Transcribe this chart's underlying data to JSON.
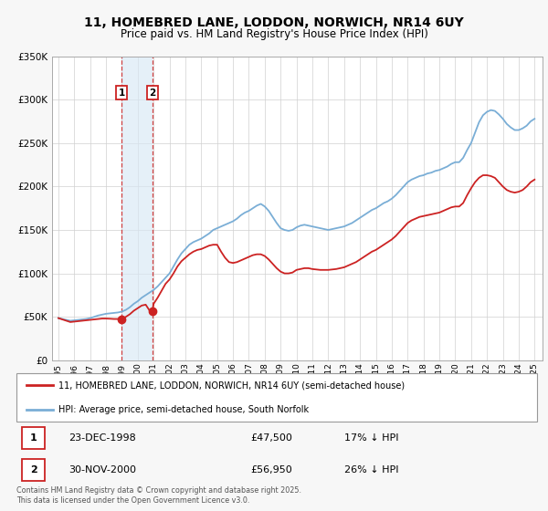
{
  "title": "11, HOMEBRED LANE, LODDON, NORWICH, NR14 6UY",
  "subtitle": "Price paid vs. HM Land Registry's House Price Index (HPI)",
  "title_fontsize": 10,
  "subtitle_fontsize": 8.5,
  "background_color": "#f7f7f7",
  "plot_bg_color": "#ffffff",
  "grid_color": "#d0d0d0",
  "hpi_color": "#7aaed6",
  "price_color": "#cc2222",
  "sale1_date": 1998.97,
  "sale1_price": 47500,
  "sale2_date": 2000.92,
  "sale2_price": 56950,
  "sale1_label": "1",
  "sale2_label": "2",
  "ylim": [
    0,
    350000
  ],
  "xlim": [
    1994.6,
    2025.5
  ],
  "legend_line1": "11, HOMEBRED LANE, LODDON, NORWICH, NR14 6UY (semi-detached house)",
  "legend_line2": "HPI: Average price, semi-detached house, South Norfolk",
  "table_row1": [
    "1",
    "23-DEC-1998",
    "£47,500",
    "17% ↓ HPI"
  ],
  "table_row2": [
    "2",
    "30-NOV-2000",
    "£56,950",
    "26% ↓ HPI"
  ],
  "footnote": "Contains HM Land Registry data © Crown copyright and database right 2025.\nThis data is licensed under the Open Government Licence v3.0.",
  "hpi_data": [
    [
      1995.0,
      48500
    ],
    [
      1995.25,
      47500
    ],
    [
      1995.5,
      46500
    ],
    [
      1995.75,
      45500
    ],
    [
      1996.0,
      46000
    ],
    [
      1996.25,
      46500
    ],
    [
      1996.5,
      47000
    ],
    [
      1996.75,
      47500
    ],
    [
      1997.0,
      48500
    ],
    [
      1997.25,
      50000
    ],
    [
      1997.5,
      51500
    ],
    [
      1997.75,
      52500
    ],
    [
      1998.0,
      53500
    ],
    [
      1998.25,
      54000
    ],
    [
      1998.5,
      54500
    ],
    [
      1998.75,
      55000
    ],
    [
      1999.0,
      56000
    ],
    [
      1999.25,
      58000
    ],
    [
      1999.5,
      61000
    ],
    [
      1999.75,
      65000
    ],
    [
      2000.0,
      68000
    ],
    [
      2000.25,
      72000
    ],
    [
      2000.5,
      75000
    ],
    [
      2000.75,
      78000
    ],
    [
      2001.0,
      81000
    ],
    [
      2001.25,
      85000
    ],
    [
      2001.5,
      90000
    ],
    [
      2001.75,
      95000
    ],
    [
      2002.0,
      100000
    ],
    [
      2002.25,
      108000
    ],
    [
      2002.5,
      116000
    ],
    [
      2002.75,
      123000
    ],
    [
      2003.0,
      128000
    ],
    [
      2003.25,
      133000
    ],
    [
      2003.5,
      136000
    ],
    [
      2003.75,
      138000
    ],
    [
      2004.0,
      140000
    ],
    [
      2004.25,
      143000
    ],
    [
      2004.5,
      146000
    ],
    [
      2004.75,
      150000
    ],
    [
      2005.0,
      152000
    ],
    [
      2005.25,
      154000
    ],
    [
      2005.5,
      156000
    ],
    [
      2005.75,
      158000
    ],
    [
      2006.0,
      160000
    ],
    [
      2006.25,
      163000
    ],
    [
      2006.5,
      167000
    ],
    [
      2006.75,
      170000
    ],
    [
      2007.0,
      172000
    ],
    [
      2007.25,
      175000
    ],
    [
      2007.5,
      178000
    ],
    [
      2007.75,
      180000
    ],
    [
      2008.0,
      177000
    ],
    [
      2008.25,
      172000
    ],
    [
      2008.5,
      165000
    ],
    [
      2008.75,
      158000
    ],
    [
      2009.0,
      152000
    ],
    [
      2009.25,
      150000
    ],
    [
      2009.5,
      149000
    ],
    [
      2009.75,
      150000
    ],
    [
      2010.0,
      153000
    ],
    [
      2010.25,
      155000
    ],
    [
      2010.5,
      156000
    ],
    [
      2010.75,
      155000
    ],
    [
      2011.0,
      154000
    ],
    [
      2011.25,
      153000
    ],
    [
      2011.5,
      152000
    ],
    [
      2011.75,
      151000
    ],
    [
      2012.0,
      150000
    ],
    [
      2012.25,
      151000
    ],
    [
      2012.5,
      152000
    ],
    [
      2012.75,
      153000
    ],
    [
      2013.0,
      154000
    ],
    [
      2013.25,
      156000
    ],
    [
      2013.5,
      158000
    ],
    [
      2013.75,
      161000
    ],
    [
      2014.0,
      164000
    ],
    [
      2014.25,
      167000
    ],
    [
      2014.5,
      170000
    ],
    [
      2014.75,
      173000
    ],
    [
      2015.0,
      175000
    ],
    [
      2015.25,
      178000
    ],
    [
      2015.5,
      181000
    ],
    [
      2015.75,
      183000
    ],
    [
      2016.0,
      186000
    ],
    [
      2016.25,
      190000
    ],
    [
      2016.5,
      195000
    ],
    [
      2016.75,
      200000
    ],
    [
      2017.0,
      205000
    ],
    [
      2017.25,
      208000
    ],
    [
      2017.5,
      210000
    ],
    [
      2017.75,
      212000
    ],
    [
      2018.0,
      213000
    ],
    [
      2018.25,
      215000
    ],
    [
      2018.5,
      216000
    ],
    [
      2018.75,
      218000
    ],
    [
      2019.0,
      219000
    ],
    [
      2019.25,
      221000
    ],
    [
      2019.5,
      223000
    ],
    [
      2019.75,
      226000
    ],
    [
      2020.0,
      228000
    ],
    [
      2020.25,
      228000
    ],
    [
      2020.5,
      233000
    ],
    [
      2020.75,
      242000
    ],
    [
      2021.0,
      250000
    ],
    [
      2021.25,
      262000
    ],
    [
      2021.5,
      274000
    ],
    [
      2021.75,
      282000
    ],
    [
      2022.0,
      286000
    ],
    [
      2022.25,
      288000
    ],
    [
      2022.5,
      287000
    ],
    [
      2022.75,
      283000
    ],
    [
      2023.0,
      278000
    ],
    [
      2023.25,
      272000
    ],
    [
      2023.5,
      268000
    ],
    [
      2023.75,
      265000
    ],
    [
      2024.0,
      265000
    ],
    [
      2024.25,
      267000
    ],
    [
      2024.5,
      270000
    ],
    [
      2024.75,
      275000
    ],
    [
      2025.0,
      278000
    ]
  ],
  "price_data": [
    [
      1995.0,
      48500
    ],
    [
      1995.25,
      47000
    ],
    [
      1995.5,
      45500
    ],
    [
      1995.75,
      44000
    ],
    [
      1996.0,
      44500
    ],
    [
      1996.25,
      45000
    ],
    [
      1996.5,
      45500
    ],
    [
      1996.75,
      46000
    ],
    [
      1997.0,
      46500
    ],
    [
      1997.25,
      47000
    ],
    [
      1997.5,
      47500
    ],
    [
      1997.75,
      48000
    ],
    [
      1998.0,
      48000
    ],
    [
      1998.25,
      47800
    ],
    [
      1998.5,
      47500
    ],
    [
      1998.75,
      47500
    ],
    [
      1998.97,
      47500
    ],
    [
      1999.25,
      50000
    ],
    [
      1999.5,
      53000
    ],
    [
      1999.75,
      57000
    ],
    [
      2000.0,
      60000
    ],
    [
      2000.25,
      63000
    ],
    [
      2000.5,
      64000
    ],
    [
      2000.75,
      57000
    ],
    [
      2000.92,
      56950
    ],
    [
      2001.0,
      65000
    ],
    [
      2001.25,
      72000
    ],
    [
      2001.5,
      80000
    ],
    [
      2001.75,
      88000
    ],
    [
      2002.0,
      93000
    ],
    [
      2002.25,
      100000
    ],
    [
      2002.5,
      108000
    ],
    [
      2002.75,
      114000
    ],
    [
      2003.0,
      118000
    ],
    [
      2003.25,
      122000
    ],
    [
      2003.5,
      125000
    ],
    [
      2003.75,
      127000
    ],
    [
      2004.0,
      128000
    ],
    [
      2004.25,
      130000
    ],
    [
      2004.5,
      132000
    ],
    [
      2004.75,
      133000
    ],
    [
      2005.0,
      133000
    ],
    [
      2005.25,
      125000
    ],
    [
      2005.5,
      118000
    ],
    [
      2005.75,
      113000
    ],
    [
      2006.0,
      112000
    ],
    [
      2006.25,
      113000
    ],
    [
      2006.5,
      115000
    ],
    [
      2006.75,
      117000
    ],
    [
      2007.0,
      119000
    ],
    [
      2007.25,
      121000
    ],
    [
      2007.5,
      122000
    ],
    [
      2007.75,
      122000
    ],
    [
      2008.0,
      120000
    ],
    [
      2008.25,
      116000
    ],
    [
      2008.5,
      111000
    ],
    [
      2008.75,
      106000
    ],
    [
      2009.0,
      102000
    ],
    [
      2009.25,
      100000
    ],
    [
      2009.5,
      100000
    ],
    [
      2009.75,
      101000
    ],
    [
      2010.0,
      104000
    ],
    [
      2010.25,
      105000
    ],
    [
      2010.5,
      106000
    ],
    [
      2010.75,
      106000
    ],
    [
      2011.0,
      105000
    ],
    [
      2011.25,
      104500
    ],
    [
      2011.5,
      104000
    ],
    [
      2011.75,
      104000
    ],
    [
      2012.0,
      104000
    ],
    [
      2012.25,
      104500
    ],
    [
      2012.5,
      105000
    ],
    [
      2012.75,
      106000
    ],
    [
      2013.0,
      107000
    ],
    [
      2013.25,
      109000
    ],
    [
      2013.5,
      111000
    ],
    [
      2013.75,
      113000
    ],
    [
      2014.0,
      116000
    ],
    [
      2014.25,
      119000
    ],
    [
      2014.5,
      122000
    ],
    [
      2014.75,
      125000
    ],
    [
      2015.0,
      127000
    ],
    [
      2015.25,
      130000
    ],
    [
      2015.5,
      133000
    ],
    [
      2015.75,
      136000
    ],
    [
      2016.0,
      139000
    ],
    [
      2016.25,
      143000
    ],
    [
      2016.5,
      148000
    ],
    [
      2016.75,
      153000
    ],
    [
      2017.0,
      158000
    ],
    [
      2017.25,
      161000
    ],
    [
      2017.5,
      163000
    ],
    [
      2017.75,
      165000
    ],
    [
      2018.0,
      166000
    ],
    [
      2018.25,
      167000
    ],
    [
      2018.5,
      168000
    ],
    [
      2018.75,
      169000
    ],
    [
      2019.0,
      170000
    ],
    [
      2019.25,
      172000
    ],
    [
      2019.5,
      174000
    ],
    [
      2019.75,
      176000
    ],
    [
      2020.0,
      177000
    ],
    [
      2020.25,
      177000
    ],
    [
      2020.5,
      181000
    ],
    [
      2020.75,
      190000
    ],
    [
      2021.0,
      198000
    ],
    [
      2021.25,
      205000
    ],
    [
      2021.5,
      210000
    ],
    [
      2021.75,
      213000
    ],
    [
      2022.0,
      213000
    ],
    [
      2022.25,
      212000
    ],
    [
      2022.5,
      210000
    ],
    [
      2022.75,
      205000
    ],
    [
      2023.0,
      200000
    ],
    [
      2023.25,
      196000
    ],
    [
      2023.5,
      194000
    ],
    [
      2023.75,
      193000
    ],
    [
      2024.0,
      194000
    ],
    [
      2024.25,
      196000
    ],
    [
      2024.5,
      200000
    ],
    [
      2024.75,
      205000
    ],
    [
      2025.0,
      208000
    ]
  ]
}
